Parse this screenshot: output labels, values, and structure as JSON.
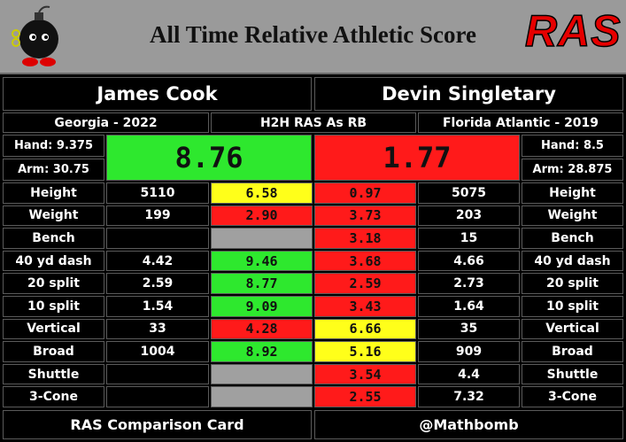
{
  "header": {
    "title": "All Time Relative Athletic Score",
    "logo": "RAS"
  },
  "players": [
    {
      "name": "James Cook",
      "school": "Georgia - 2022",
      "hand": "Hand: 9.375",
      "arm": "Arm: 30.75",
      "ras": "8.76",
      "ras_color": "#2ee82e"
    },
    {
      "name": "Devin Singletary",
      "school": "Florida Atlantic - 2019",
      "hand": "Hand: 8.5",
      "arm": "Arm: 28.875",
      "ras": "1.77",
      "ras_color": "#ff1a1a"
    }
  ],
  "comparison": "H2H RAS As RB",
  "rows": [
    {
      "label": "Height",
      "left": "5110",
      "left_score": "6.58",
      "left_color": "#ffff1a",
      "right_score": "0.97",
      "right_color": "#ff1a1a",
      "right": "5075"
    },
    {
      "label": "Weight",
      "left": "199",
      "left_score": "2.90",
      "left_color": "#ff1a1a",
      "right_score": "3.73",
      "right_color": "#ff1a1a",
      "right": "203"
    },
    {
      "label": "Bench",
      "left": null,
      "left_score": null,
      "left_color": "#a0a0a0",
      "right_score": "3.18",
      "right_color": "#ff1a1a",
      "right": "15"
    },
    {
      "label": "40 yd dash",
      "left": "4.42",
      "left_score": "9.46",
      "left_color": "#2ee82e",
      "right_score": "3.68",
      "right_color": "#ff1a1a",
      "right": "4.66"
    },
    {
      "label": "20 split",
      "left": "2.59",
      "left_score": "8.77",
      "left_color": "#2ee82e",
      "right_score": "2.59",
      "right_color": "#ff1a1a",
      "right": "2.73"
    },
    {
      "label": "10 split",
      "left": "1.54",
      "left_score": "9.09",
      "left_color": "#2ee82e",
      "right_score": "3.43",
      "right_color": "#ff1a1a",
      "right": "1.64"
    },
    {
      "label": "Vertical",
      "left": "33",
      "left_score": "4.28",
      "left_color": "#ff1a1a",
      "right_score": "6.66",
      "right_color": "#ffff1a",
      "right": "35"
    },
    {
      "label": "Broad",
      "left": "1004",
      "left_score": "8.92",
      "left_color": "#2ee82e",
      "right_score": "5.16",
      "right_color": "#ffff1a",
      "right": "909"
    },
    {
      "label": "Shuttle",
      "left": null,
      "left_score": null,
      "left_color": "#a0a0a0",
      "right_score": "3.54",
      "right_color": "#ff1a1a",
      "right": "4.4"
    },
    {
      "label": "3-Cone",
      "left": null,
      "left_score": null,
      "left_color": "#a0a0a0",
      "right_score": "2.55",
      "right_color": "#ff1a1a",
      "right": "7.32"
    }
  ],
  "footer": {
    "left": "RAS Comparison Card",
    "right": "@Mathbomb"
  }
}
